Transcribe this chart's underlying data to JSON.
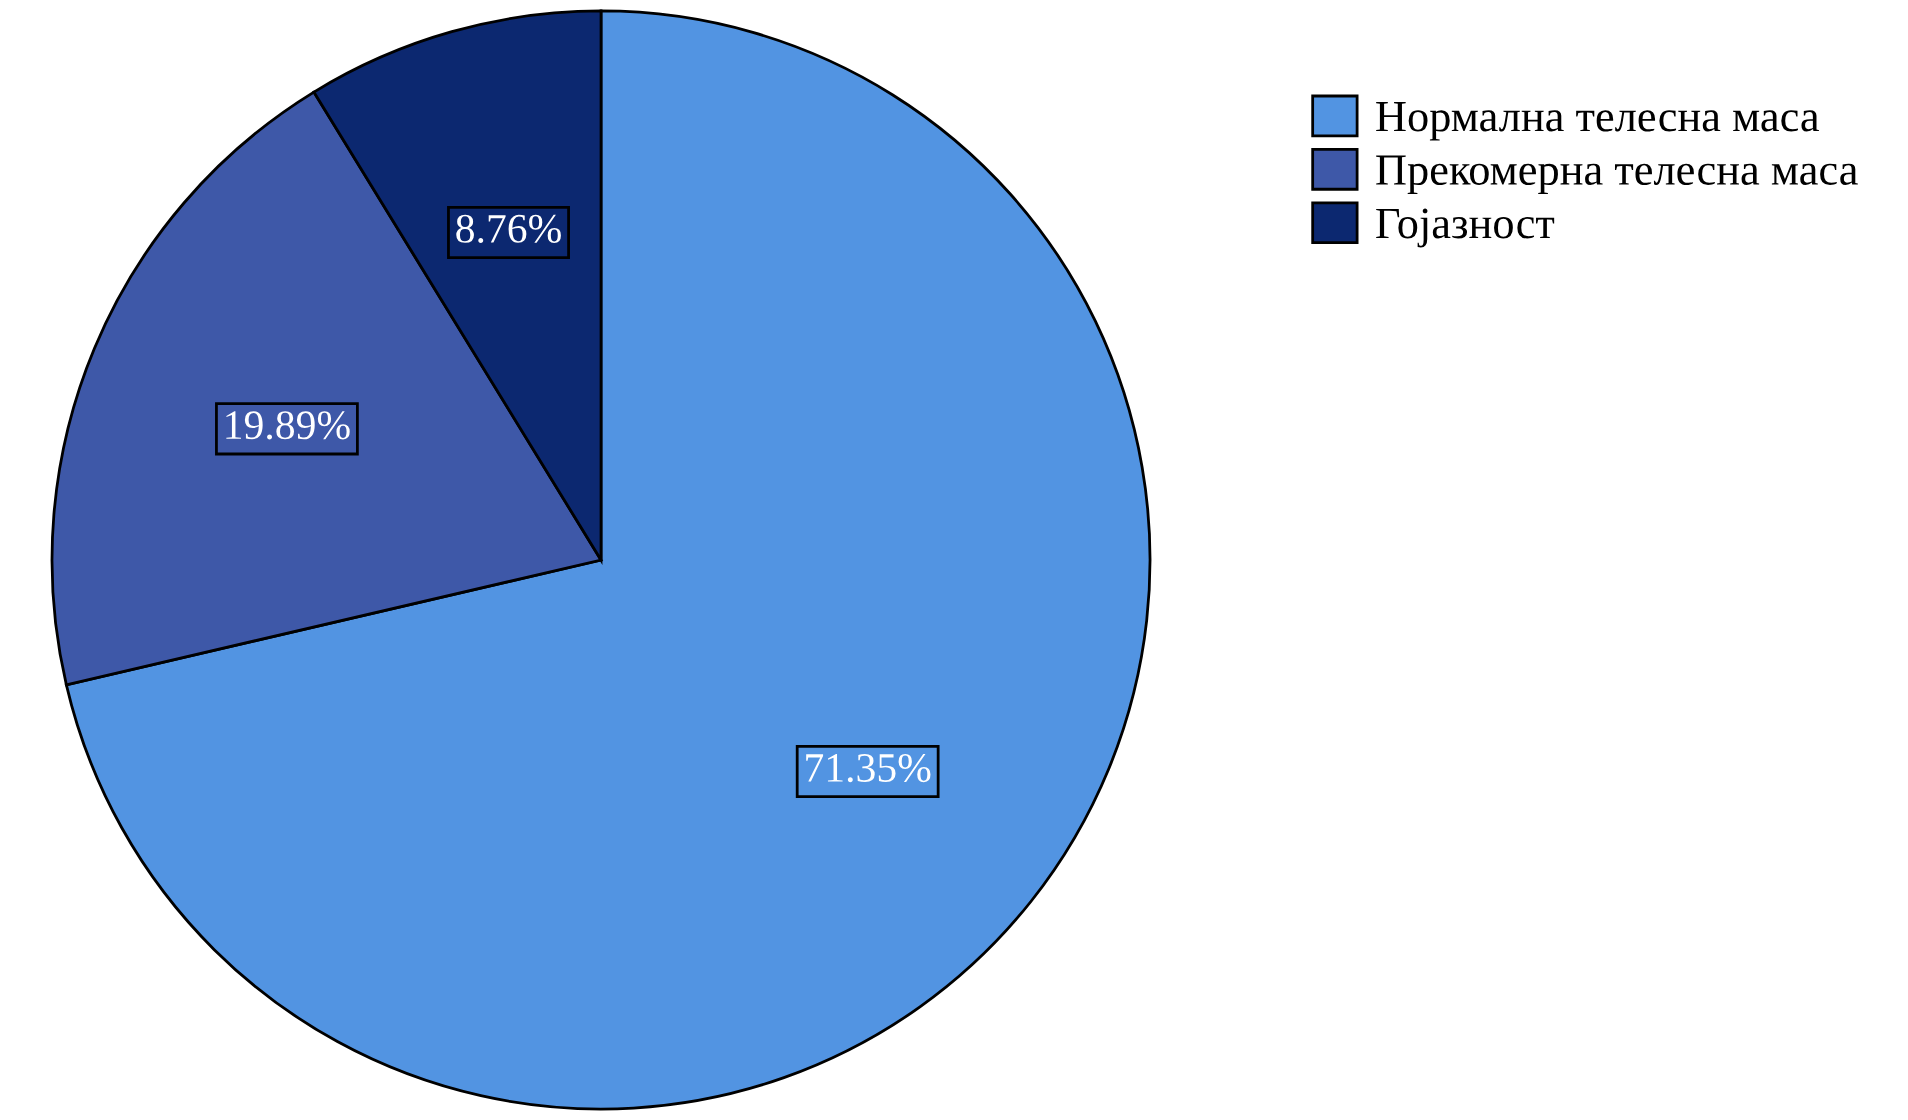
{
  "chart_data": {
    "type": "pie",
    "categories": [
      "Нормална телесна маса",
      "Прекомерна телесна маса",
      "Гојазност"
    ],
    "values": [
      71.35,
      19.89,
      8.76
    ],
    "colors": [
      "#5294e2",
      "#3e58a8",
      "#0c2870"
    ],
    "value_labels": [
      "71.35%",
      "19.89%",
      "8.76%"
    ],
    "legend": "top right"
  }
}
